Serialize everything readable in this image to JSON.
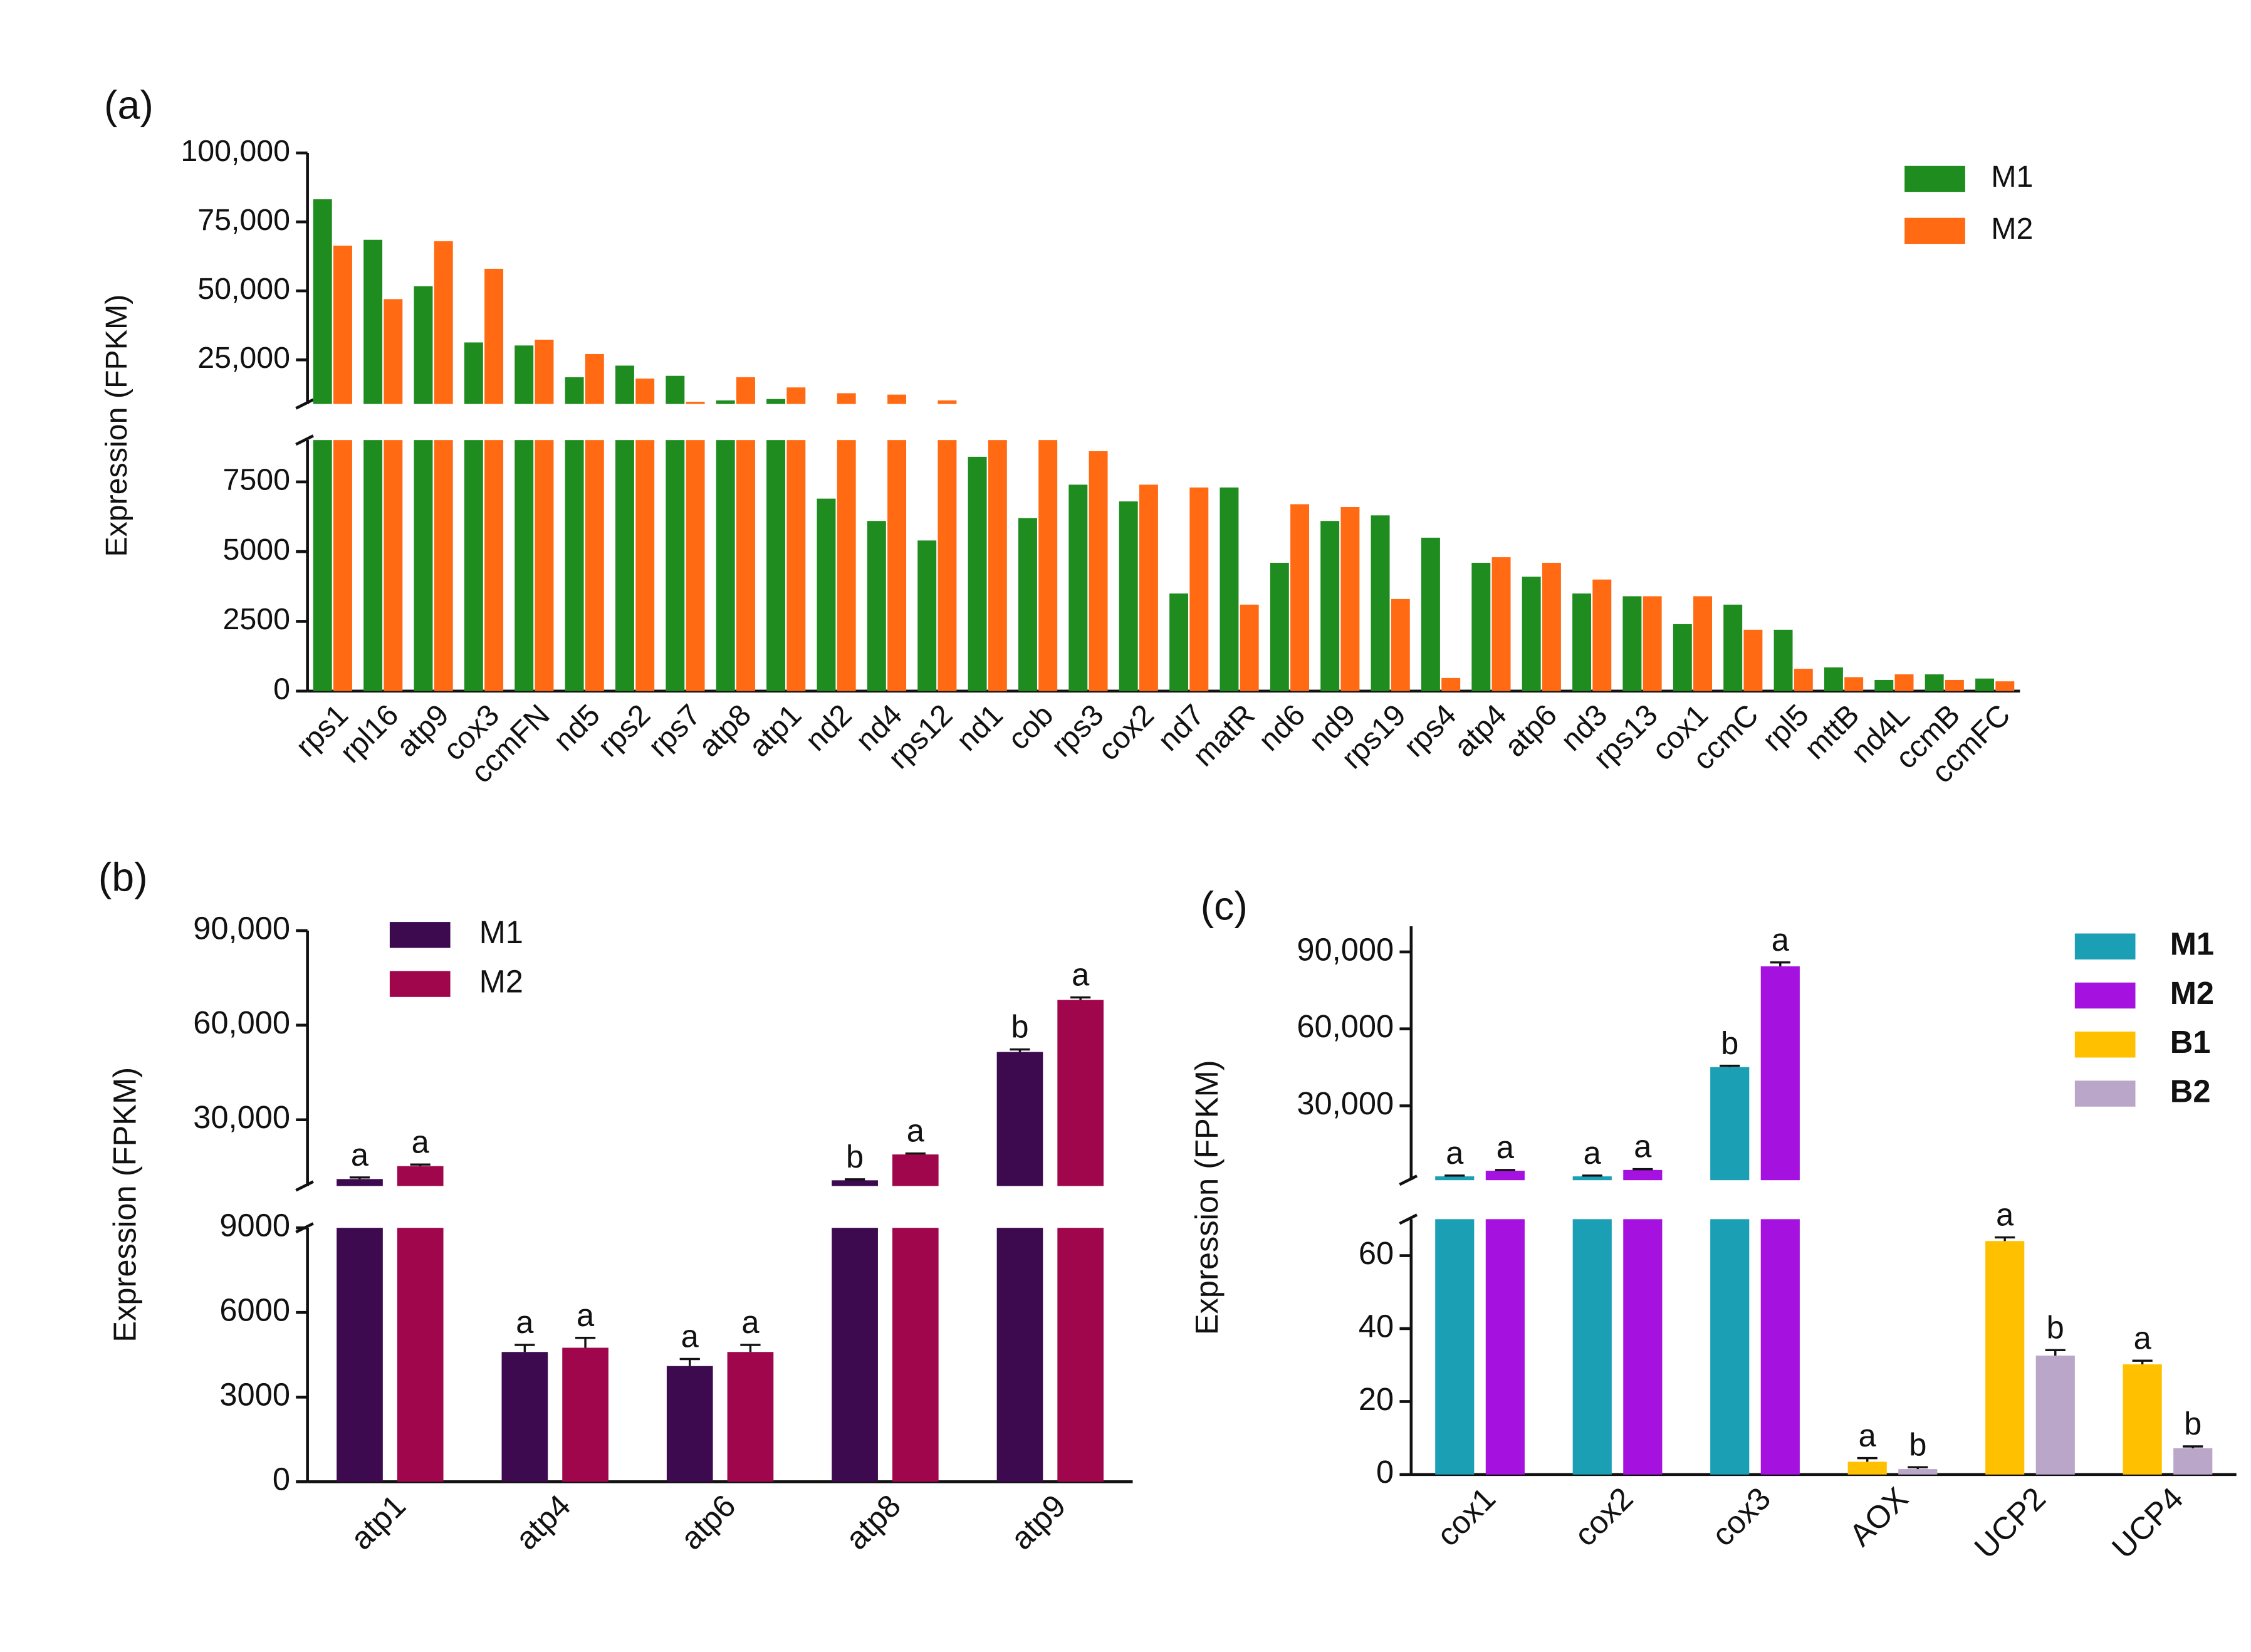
{
  "chart_data": [
    {
      "type": "bar",
      "label": "(a)",
      "y_label": "Expression (FPKM)",
      "categories": [
        "rps1",
        "rpl16",
        "atp9",
        "cox3",
        "ccmFN",
        "nd5",
        "rps2",
        "rps7",
        "atp8",
        "atp1",
        "nd2",
        "nd4",
        "rps12",
        "nd1",
        "cob",
        "rps3",
        "cox2",
        "nd7",
        "matR",
        "nd6",
        "nd9",
        "rps19",
        "rps4",
        "atp4",
        "atp6",
        "nd3",
        "rps13",
        "cox1",
        "ccmC",
        "rpl5",
        "mttB",
        "nd4L",
        "ccmB",
        "ccmFC"
      ],
      "series": [
        {
          "name": "M1",
          "color": "#1e8c1e",
          "values": [
            83200,
            68500,
            51700,
            31300,
            30200,
            18700,
            22900,
            19200,
            10300,
            10800,
            6900,
            6100,
            5400,
            8400,
            6200,
            7400,
            6800,
            3500,
            7300,
            4600,
            6100,
            6300,
            5500,
            4600,
            4100,
            3500,
            3400,
            2400,
            3100,
            2200,
            850,
            400,
            600,
            450
          ]
        },
        {
          "name": "M2",
          "color": "#ff6a13",
          "values": [
            66400,
            47000,
            68000,
            58000,
            32300,
            27100,
            18200,
            9800,
            18700,
            15000,
            12900,
            12400,
            10300,
            9000,
            9000,
            8600,
            7400,
            7300,
            3100,
            6700,
            6600,
            3300,
            470,
            4800,
            4600,
            4000,
            3400,
            3400,
            2200,
            800,
            500,
            600,
            400,
            350
          ]
        }
      ],
      "ylim": [
        0,
        100000
      ],
      "ybreak": [
        9000,
        9000
      ],
      "yticks": [
        0,
        2500,
        5000,
        7500,
        {
          "value": 25000,
          "label": "25,000"
        },
        {
          "value": 50000,
          "label": "50,000"
        },
        {
          "value": 75000,
          "label": "75,000"
        },
        {
          "value": 100000,
          "label": "100,000"
        }
      ],
      "legend": "upper right",
      "grid": false
    },
    {
      "type": "bar",
      "label": "(b)",
      "y_label": "Expression (FPKM)",
      "categories": [
        "atp1",
        "atp4",
        "atp6",
        "atp8",
        "atp9"
      ],
      "series": [
        {
          "name": "M1",
          "color": "#3d0a50",
          "values": [
            11200,
            4600,
            4100,
            10800,
            51500
          ],
          "errors": [
            500,
            250,
            250,
            300,
            800
          ],
          "significance": [
            "a",
            "a",
            "a",
            "b",
            "b"
          ]
        },
        {
          "name": "M2",
          "color": "#a0064b",
          "values": [
            15300,
            4750,
            4600,
            19000,
            68000
          ],
          "errors": [
            500,
            350,
            250,
            300,
            800
          ],
          "significance": [
            "a",
            "a",
            "a",
            "a",
            "a"
          ]
        }
      ],
      "ylim": [
        0,
        90000
      ],
      "ybreak": [
        9000,
        9000
      ],
      "yticks": [
        0,
        3000,
        6000,
        9000,
        {
          "value": 30000,
          "label": "30,000"
        },
        {
          "value": 60000,
          "label": "60,000"
        },
        {
          "value": 90000,
          "label": "90,000"
        }
      ],
      "legend": "upper left",
      "grid": false
    },
    {
      "type": "bar",
      "label": "(c)",
      "y_label": "Expression (FPKM)",
      "categories": [
        "cox1",
        "cox2",
        "cox3",
        "AOX",
        "UCP2",
        "UCP4"
      ],
      "series": [
        {
          "name": "M1",
          "color": "#1a9fb5",
          "values": [
            2500,
            2500,
            45100,
            null,
            null,
            null
          ],
          "errors": [
            300,
            300,
            500,
            null,
            null,
            null
          ],
          "significance": [
            "a",
            "a",
            "b",
            null,
            null,
            null
          ]
        },
        {
          "name": "M2",
          "color": "#a512e0",
          "values": [
            4700,
            5000,
            84400,
            null,
            null,
            null
          ],
          "errors": [
            300,
            300,
            1500,
            null,
            null,
            null
          ],
          "significance": [
            "a",
            "a",
            "a",
            null,
            null,
            null
          ]
        },
        {
          "name": "B1",
          "color": "#ffc000",
          "values": [
            null,
            null,
            null,
            3.5,
            64,
            30.2
          ],
          "errors": [
            null,
            null,
            null,
            1,
            1,
            1
          ],
          "significance": [
            null,
            null,
            null,
            "a",
            "a",
            "a"
          ]
        },
        {
          "name": "B2",
          "color": "#b9a6c9",
          "values": [
            null,
            null,
            null,
            1.5,
            32.6,
            7.2
          ],
          "errors": [
            null,
            null,
            null,
            0.5,
            1.5,
            0.5
          ],
          "significance": [
            null,
            null,
            null,
            "b",
            "b",
            "b"
          ]
        }
      ],
      "ylim": [
        0,
        100000
      ],
      "ybreak": [
        70,
        1000
      ],
      "yticks": [
        0,
        20,
        40,
        60,
        {
          "value": 30000,
          "label": "30,000"
        },
        {
          "value": 60000,
          "label": "60,000"
        },
        {
          "value": 90000,
          "label": "90,000"
        }
      ],
      "legend": "upper right",
      "legend_weight": "bold",
      "grid": false
    }
  ]
}
